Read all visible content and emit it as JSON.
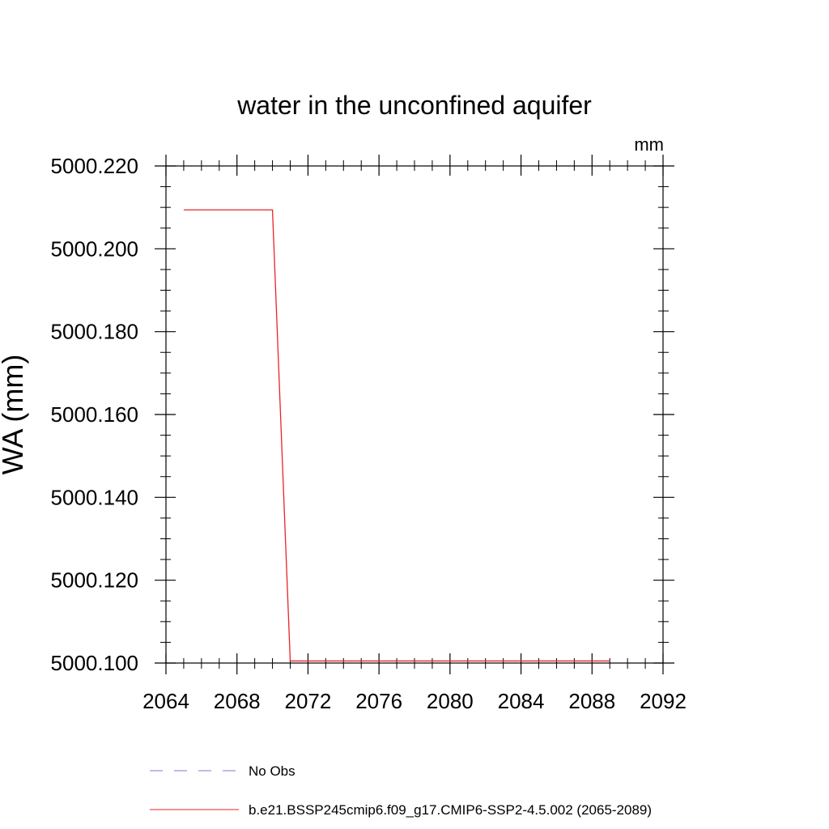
{
  "chart_data": {
    "type": "line",
    "title": "water in the unconfined aquifer",
    "units_label": "mm",
    "ylabel": "WA  (mm)",
    "xlabel": "",
    "xlim": [
      2064,
      2092
    ],
    "ylim": [
      5000.1,
      5000.22
    ],
    "x_ticks": [
      2064,
      2068,
      2072,
      2076,
      2080,
      2084,
      2088,
      2092
    ],
    "x_tick_labels": [
      "2064",
      "2068",
      "2072",
      "2076",
      "2080",
      "2084",
      "2088",
      "2092"
    ],
    "y_ticks": [
      5000.1,
      5000.12,
      5000.14,
      5000.16,
      5000.18,
      5000.2,
      5000.22
    ],
    "y_tick_labels": [
      "5000.100",
      "5000.120",
      "5000.140",
      "5000.160",
      "5000.180",
      "5000.200",
      "5000.220"
    ],
    "grid": false,
    "series": [
      {
        "name": "b.e21.BSSP245cmip6.f09_g17.CMIP6-SSP2-4.5.002 (2065-2089)",
        "color": "#e8232a",
        "dash": "solid",
        "x": [
          2065,
          2066,
          2067,
          2068,
          2069,
          2070,
          2071,
          2072,
          2073,
          2074,
          2075,
          2076,
          2077,
          2078,
          2079,
          2080,
          2081,
          2082,
          2083,
          2084,
          2085,
          2086,
          2087,
          2088,
          2089
        ],
        "y": [
          5000.2094,
          5000.2094,
          5000.2094,
          5000.2094,
          5000.2094,
          5000.2094,
          5000.1005,
          5000.1005,
          5000.1005,
          5000.1005,
          5000.1005,
          5000.1005,
          5000.1005,
          5000.1005,
          5000.1005,
          5000.1005,
          5000.1005,
          5000.1005,
          5000.1005,
          5000.1005,
          5000.1005,
          5000.1005,
          5000.1005,
          5000.1005,
          5000.1005
        ]
      }
    ],
    "legend": {
      "placement": "bottom",
      "entries": [
        {
          "label": "No Obs",
          "color": "#7b7bd6",
          "dash": "dashed"
        },
        {
          "label": "b.e21.BSSP245cmip6.f09_g17.CMIP6-SSP2-4.5.002 (2065-2089)",
          "color": "#e8232a",
          "dash": "solid"
        }
      ]
    }
  }
}
